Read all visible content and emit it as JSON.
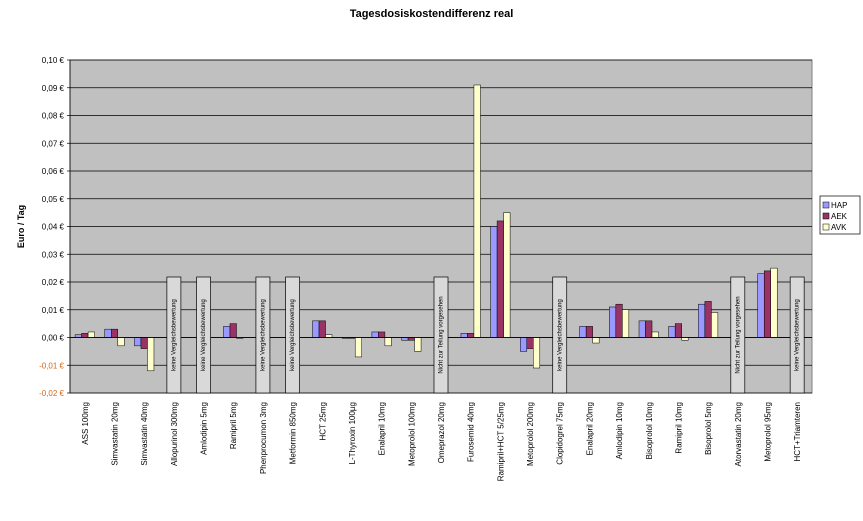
{
  "chart_data": {
    "type": "bar",
    "title": "Tagesdosiskostendifferenz real",
    "ylabel": "Euro / Tag",
    "xlabel": "",
    "ylim": [
      -0.02,
      0.1
    ],
    "y_ticks": [
      "0,10 €",
      "0,09 €",
      "0,08 €",
      "0,07 €",
      "0,06 €",
      "0,05 €",
      "0,04 €",
      "0,03 €",
      "0,02 €",
      "0,01 €",
      "0,00 €",
      "-0,01 €",
      "-0,02 €"
    ],
    "y_tick_values": [
      0.1,
      0.09,
      0.08,
      0.07,
      0.06,
      0.05,
      0.04,
      0.03,
      0.02,
      0.01,
      0.0,
      -0.01,
      -0.02
    ],
    "grid": true,
    "legend_position": "right",
    "categories": [
      "ASS 100mg",
      "Simvastatin 20mg",
      "Simvastatin 40mg",
      "Allopurinol 300mg",
      "Amlodipin 5mg",
      "Ramipril 5mg",
      "Phenprocumon 3mg",
      "Metformin 850mg",
      "HCT 25mg",
      "L-Thyroxin 100µg",
      "Enalapril 10mg",
      "Metoprolol 100mg",
      "Omeprazol 20mg",
      "Furosemid 40mg",
      "Ramipril+HCT 5/25mg",
      "Metoprolol 200mg",
      "Clopidogrel 75mg",
      "Enalapril 20mg",
      "Amlodipin 10mg",
      "Bisoprolol 10mg",
      "Ramipril 10mg",
      "Bisoprolol 5mg",
      "Atorvastatin 20mg",
      "Metoprolol 95mg",
      "HCT+Triamteren"
    ],
    "series": [
      {
        "name": "HAP",
        "color": "#9999ff",
        "values": [
          0.001,
          0.003,
          -0.003,
          null,
          null,
          0.004,
          null,
          null,
          0.006,
          0.0,
          0.002,
          -0.001,
          null,
          0.0015,
          0.04,
          -0.005,
          null,
          0.004,
          0.011,
          0.006,
          0.004,
          0.012,
          null,
          0.023,
          null
        ]
      },
      {
        "name": "AEK",
        "color": "#993366",
        "values": [
          0.0015,
          0.003,
          -0.004,
          null,
          null,
          0.005,
          null,
          null,
          0.006,
          0.0,
          0.002,
          -0.001,
          null,
          0.0015,
          0.042,
          -0.004,
          null,
          0.004,
          0.012,
          0.006,
          0.005,
          0.013,
          null,
          0.024,
          null
        ]
      },
      {
        "name": "AVK",
        "color": "#ffffcc",
        "values": [
          0.002,
          -0.003,
          -0.012,
          null,
          null,
          0.0,
          null,
          null,
          0.001,
          -0.007,
          -0.003,
          -0.005,
          null,
          0.091,
          0.045,
          -0.011,
          null,
          -0.002,
          0.01,
          0.002,
          -0.001,
          0.009,
          null,
          0.025,
          null
        ]
      }
    ],
    "annotations": [
      {
        "category_index": 3,
        "text": "keine Vergleichsbewertung"
      },
      {
        "category_index": 4,
        "text": "keine Vergleichsbewertung"
      },
      {
        "category_index": 6,
        "text": "keine Vergleichsbewertung"
      },
      {
        "category_index": 7,
        "text": "keine Vergleichsbewertung"
      },
      {
        "category_index": 12,
        "text": "Nicht zur Teilung vorgesehen"
      },
      {
        "category_index": 16,
        "text": "keine Vergleichsbewertung"
      },
      {
        "category_index": 22,
        "text": "Nicht zur Teilung vorgesehen"
      },
      {
        "category_index": 24,
        "text": "keine Vergleichsbewertung"
      }
    ]
  }
}
